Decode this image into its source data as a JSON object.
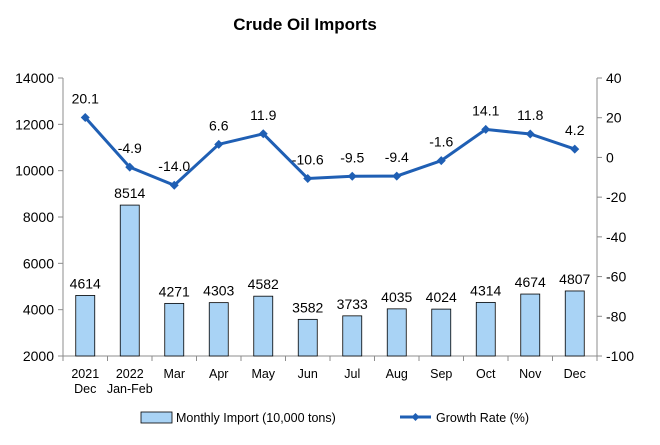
{
  "chart_data": {
    "type": "bar+line",
    "title": "Crude Oil Imports",
    "categories": [
      [
        "2021",
        "Dec"
      ],
      [
        "2022",
        "Jan-Feb"
      ],
      [
        "Mar"
      ],
      [
        "Apr"
      ],
      [
        "May"
      ],
      [
        "Jun"
      ],
      [
        "Jul"
      ],
      [
        "Aug"
      ],
      [
        "Sep"
      ],
      [
        "Oct"
      ],
      [
        "Nov"
      ],
      [
        "Dec"
      ]
    ],
    "series": [
      {
        "name": "Monthly Import (10,000 tons)",
        "type": "bar",
        "axis": "left",
        "color": "#a9d3f5",
        "values": [
          4614,
          8514,
          4271,
          4303,
          4582,
          3582,
          3733,
          4035,
          4024,
          4314,
          4674,
          4807
        ]
      },
      {
        "name": "Growth Rate (%)",
        "type": "line",
        "axis": "right",
        "color": "#1f5fb4",
        "values": [
          20.1,
          -4.9,
          -14.0,
          6.6,
          11.9,
          -10.6,
          -9.5,
          -9.4,
          -1.6,
          14.1,
          11.8,
          4.2
        ]
      }
    ],
    "left_axis": {
      "ylim": [
        2000,
        14000
      ],
      "ticks": [
        2000,
        4000,
        6000,
        8000,
        10000,
        12000,
        14000
      ]
    },
    "right_axis": {
      "ylim": [
        -100,
        40
      ],
      "ticks": [
        -100,
        -80,
        -60,
        -40,
        -20,
        0,
        20,
        40
      ]
    },
    "grid": false,
    "legend_position": "bottom"
  }
}
